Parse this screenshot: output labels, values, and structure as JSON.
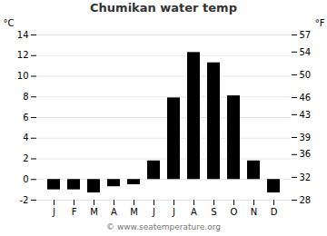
{
  "chart_data": {
    "type": "bar",
    "title": "Chumikan water temp",
    "categories": [
      "J",
      "F",
      "M",
      "A",
      "M",
      "J",
      "J",
      "A",
      "S",
      "O",
      "N",
      "D"
    ],
    "values": [
      -1.0,
      -1.0,
      -1.3,
      -0.7,
      -0.5,
      1.8,
      7.9,
      12.3,
      11.3,
      8.1,
      1.8,
      -1.3
    ],
    "ylim": [
      -2,
      14
    ],
    "yticks": [
      -2,
      0,
      2,
      4,
      6,
      8,
      10,
      12,
      14
    ],
    "ylabel": "°C",
    "y2lim": [
      28,
      57
    ],
    "y2ticks": [
      28,
      32,
      36,
      39,
      43,
      46,
      50,
      54,
      57
    ],
    "y2label": "°F",
    "grid": true,
    "caption": "© www.seatemperature.org"
  }
}
